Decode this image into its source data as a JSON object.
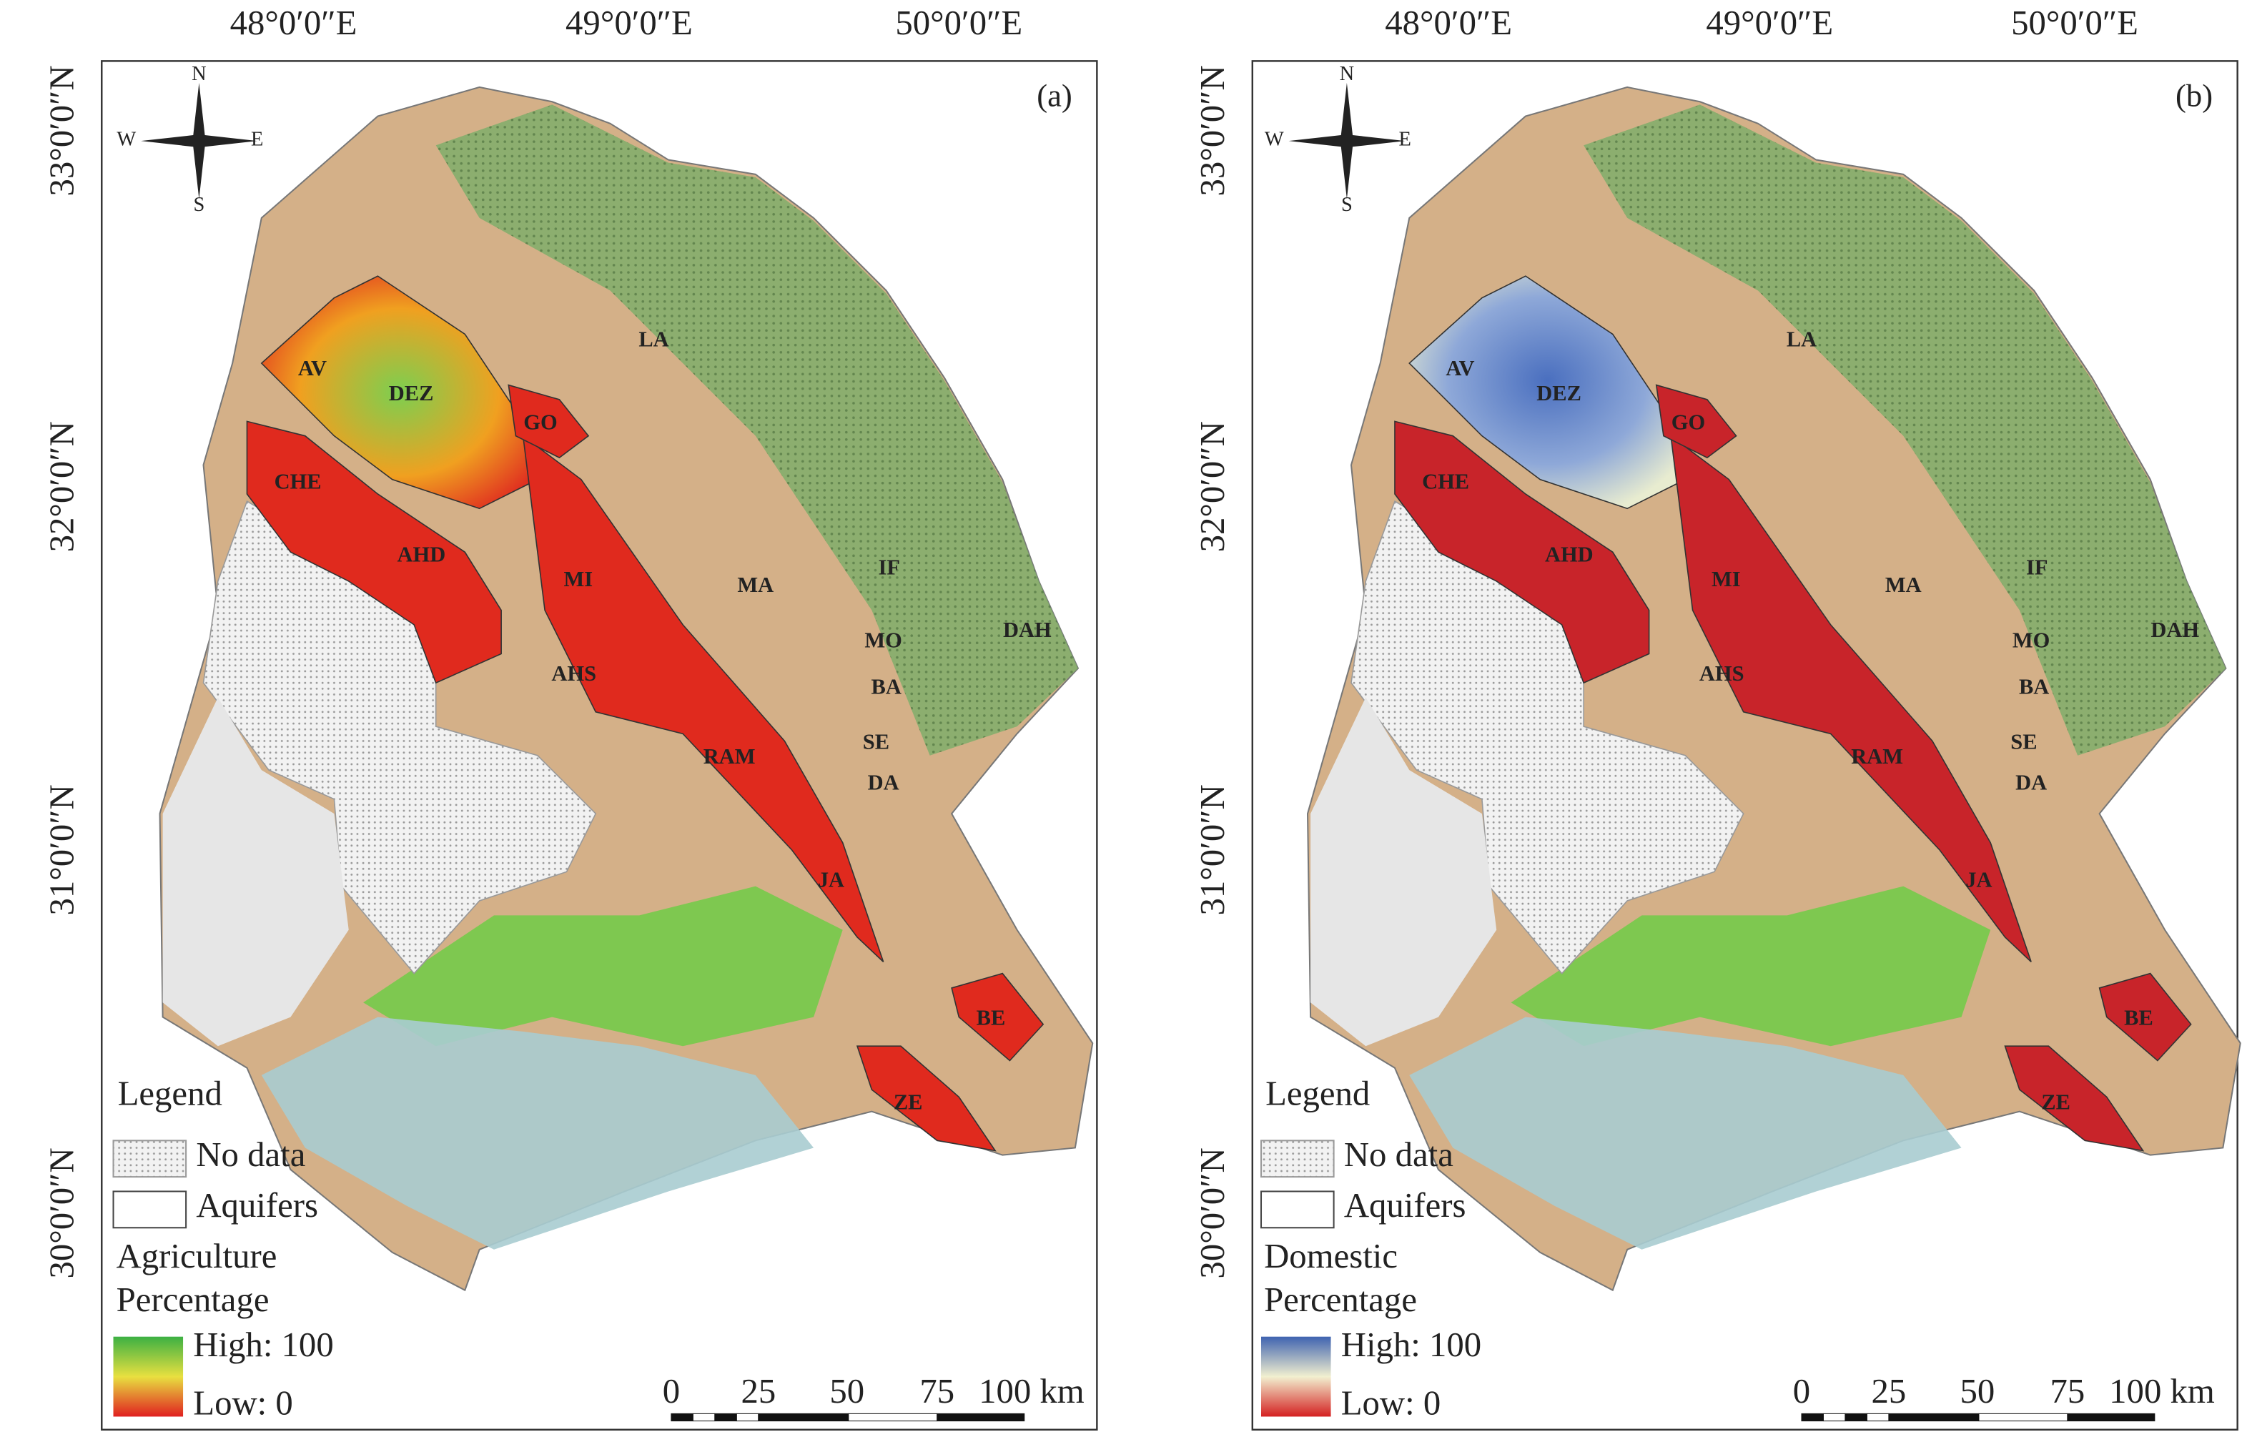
{
  "panels": [
    {
      "label": "(a)",
      "x_labels": [
        "48°0′0″E",
        "49°0′0″E",
        "50°0′0″E"
      ],
      "y_labels": [
        "33°0′0″N",
        "32°0′0″N",
        "31°0′0″N",
        "30°0′0″N"
      ],
      "compass": [
        "N",
        "S",
        "W",
        "E"
      ],
      "aquifers": [
        "LA",
        "AV",
        "DEZ",
        "GO",
        "CHE",
        "AHD",
        "MI",
        "AHS",
        "MA",
        "IF",
        "MO",
        "BA",
        "SE",
        "DA",
        "DAH",
        "RAM",
        "JA",
        "BE",
        "ZE"
      ],
      "legend": {
        "title": "Legend",
        "no_data": "No data",
        "aquifers": "Aquifers",
        "ramp_title": [
          "Agriculture",
          "Percentage"
        ],
        "high": "High: 100",
        "low": "Low: 0"
      },
      "scale": [
        "0",
        "25",
        "50",
        "75",
        "100 km"
      ]
    },
    {
      "label": "(b)",
      "x_labels": [
        "48°0′0″E",
        "49°0′0″E",
        "50°0′0″E"
      ],
      "y_labels": [
        "33°0′0″N",
        "32°0′0″N",
        "31°0′0″N",
        "30°0′0″N"
      ],
      "compass": [
        "N",
        "S",
        "W",
        "E"
      ],
      "aquifers": [
        "LA",
        "AV",
        "DEZ",
        "GO",
        "CHE",
        "AHD",
        "MI",
        "AHS",
        "MA",
        "IF",
        "MO",
        "BA",
        "SE",
        "DA",
        "DAH",
        "RAM",
        "JA",
        "BE",
        "ZE"
      ],
      "legend": {
        "title": "Legend",
        "no_data": "No data",
        "aquifers": "Aquifers",
        "ramp_title": [
          "Domestic",
          "Percentage"
        ],
        "high": "High: 100",
        "low": "Low: 0"
      },
      "scale": [
        "0",
        "25",
        "50",
        "75",
        "100 km"
      ]
    }
  ]
}
